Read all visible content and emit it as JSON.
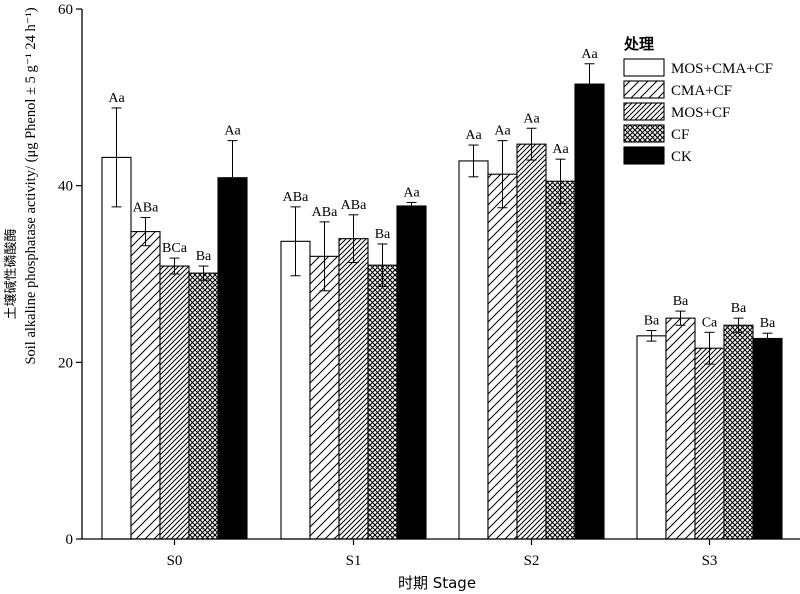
{
  "chart_data": {
    "type": "bar",
    "xlabel": "时期 Stage",
    "ylabel_cn": "土壤碱性磷酸酶",
    "ylabel_en": "Soil alkaline phosphatase activity/ (μg Phenol ± 5 g⁻¹ 24 h⁻¹)",
    "ylim": [
      0,
      60
    ],
    "yticks": [
      "0",
      "20",
      "40",
      "60"
    ],
    "categories": [
      "S0",
      "S1",
      "S2",
      "S3"
    ],
    "legend_title": "处理",
    "legend_position": "top-right",
    "series": [
      {
        "name": "MOS+CMA+CF",
        "pattern": "white",
        "values": [
          43.2,
          33.7,
          42.8,
          23.0
        ],
        "errors": [
          5.6,
          3.9,
          1.8,
          0.6
        ],
        "labels": [
          "Aa",
          "ABa",
          "Aa",
          "Ba"
        ]
      },
      {
        "name": "CMA+CF",
        "pattern": "diag-sparse",
        "values": [
          34.8,
          32.0,
          41.3,
          25.0
        ],
        "errors": [
          1.6,
          3.9,
          3.8,
          0.8
        ],
        "labels": [
          "ABa",
          "ABa",
          "Aa",
          "Ba"
        ]
      },
      {
        "name": "MOS+CF",
        "pattern": "diag-dense",
        "values": [
          30.9,
          34.0,
          44.7,
          21.6
        ],
        "errors": [
          0.9,
          2.7,
          1.8,
          1.8
        ],
        "labels": [
          "BCa",
          "ABa",
          "Aa",
          "Ca"
        ]
      },
      {
        "name": "CF",
        "pattern": "crosshatch",
        "values": [
          30.1,
          31.0,
          40.5,
          24.2
        ],
        "errors": [
          0.8,
          2.4,
          2.5,
          0.8
        ],
        "labels": [
          "Ba",
          "Ba",
          "Aa",
          "Ba"
        ]
      },
      {
        "name": "CK",
        "pattern": "black",
        "values": [
          40.9,
          37.7,
          51.5,
          22.7
        ],
        "errors": [
          4.2,
          0.4,
          2.3,
          0.6
        ],
        "labels": [
          "Aa",
          "Aa",
          "Aa",
          "Ba"
        ]
      }
    ]
  }
}
